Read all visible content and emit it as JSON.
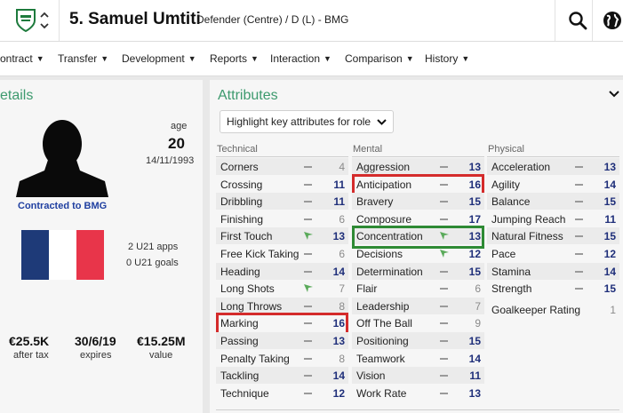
{
  "header": {
    "player_name": "5. Samuel Umtiti",
    "player_role": "Defender (Centre) / D (L) - BMG",
    "icons": [
      "club-crest-icon",
      "up-down-chevron-icon",
      "search-icon",
      "globe-icon"
    ]
  },
  "nav": {
    "items": [
      "ontract",
      "Transfer",
      "Development",
      "Reports",
      "Interaction",
      "Comparison",
      "History"
    ]
  },
  "details": {
    "title": "etails",
    "age_label": "age",
    "age": "20",
    "dob": "14/11/1993",
    "contract_status": "Contracted to BMG",
    "u21_apps": "2 U21 apps",
    "u21_goals": "0 U21 goals",
    "wage_value": "€25.5K",
    "wage_label": "after tax",
    "expires_value": "30/6/19",
    "expires_label": "expires",
    "value_value": "€15.25M",
    "value_label": "value",
    "flag_colors": [
      "#1e3a78",
      "#ffffff",
      "#e8354a"
    ]
  },
  "attributes": {
    "title": "Attributes",
    "highlight_dropdown": "Highlight key attributes for role",
    "colors": {
      "title": "#3d9a6e",
      "highlight_red": "#d42b2b",
      "highlight_green": "#2e8a34",
      "value_navy": "#1f2f7a",
      "value_grey": "#8a8a8a",
      "arrow_green": "#5aaa5a"
    },
    "technical": {
      "label": "Technical",
      "rows": [
        {
          "name": "Corners",
          "value": "4",
          "trend": "dash",
          "tone": "grey"
        },
        {
          "name": "Crossing",
          "value": "11",
          "trend": "dash",
          "tone": "navy"
        },
        {
          "name": "Dribbling",
          "value": "11",
          "trend": "dash",
          "tone": "navy"
        },
        {
          "name": "Finishing",
          "value": "6",
          "trend": "dash",
          "tone": "grey"
        },
        {
          "name": "First Touch",
          "value": "13",
          "trend": "up",
          "tone": "navy"
        },
        {
          "name": "Free Kick Taking",
          "value": "6",
          "trend": "dash",
          "tone": "grey"
        },
        {
          "name": "Heading",
          "value": "14",
          "trend": "dash",
          "tone": "navy"
        },
        {
          "name": "Long Shots",
          "value": "7",
          "trend": "up",
          "tone": "grey"
        },
        {
          "name": "Long Throws",
          "value": "8",
          "trend": "dash",
          "tone": "grey"
        },
        {
          "name": "Marking",
          "value": "16",
          "trend": "dash",
          "tone": "navy"
        },
        {
          "name": "Passing",
          "value": "13",
          "trend": "dash",
          "tone": "navy"
        },
        {
          "name": "Penalty Taking",
          "value": "8",
          "trend": "dash",
          "tone": "grey"
        },
        {
          "name": "Tackling",
          "value": "14",
          "trend": "dash",
          "tone": "navy"
        },
        {
          "name": "Technique",
          "value": "12",
          "trend": "dash",
          "tone": "navy"
        }
      ]
    },
    "mental": {
      "label": "Mental",
      "rows": [
        {
          "name": "Aggression",
          "value": "13",
          "trend": "dash",
          "tone": "navy"
        },
        {
          "name": "Anticipation",
          "value": "16",
          "trend": "dash",
          "tone": "navy"
        },
        {
          "name": "Bravery",
          "value": "15",
          "trend": "dash",
          "tone": "navy"
        },
        {
          "name": "Composure",
          "value": "17",
          "trend": "dash",
          "tone": "navy"
        },
        {
          "name": "Concentration",
          "value": "13",
          "trend": "up",
          "tone": "navy"
        },
        {
          "name": "Decisions",
          "value": "12",
          "trend": "up",
          "tone": "navy"
        },
        {
          "name": "Determination",
          "value": "15",
          "trend": "dash",
          "tone": "navy"
        },
        {
          "name": "Flair",
          "value": "6",
          "trend": "dash",
          "tone": "grey"
        },
        {
          "name": "Leadership",
          "value": "7",
          "trend": "dash",
          "tone": "grey"
        },
        {
          "name": "Off The Ball",
          "value": "9",
          "trend": "dash",
          "tone": "grey"
        },
        {
          "name": "Positioning",
          "value": "15",
          "trend": "dash",
          "tone": "navy"
        },
        {
          "name": "Teamwork",
          "value": "14",
          "trend": "dash",
          "tone": "navy"
        },
        {
          "name": "Vision",
          "value": "11",
          "trend": "dash",
          "tone": "navy"
        },
        {
          "name": "Work Rate",
          "value": "13",
          "trend": "dash",
          "tone": "navy"
        }
      ]
    },
    "physical": {
      "label": "Physical",
      "rows": [
        {
          "name": "Acceleration",
          "value": "13",
          "trend": "dash",
          "tone": "navy"
        },
        {
          "name": "Agility",
          "value": "14",
          "trend": "dash",
          "tone": "navy"
        },
        {
          "name": "Balance",
          "value": "15",
          "trend": "dash",
          "tone": "navy"
        },
        {
          "name": "Jumping Reach",
          "value": "11",
          "trend": "dash",
          "tone": "navy"
        },
        {
          "name": "Natural Fitness",
          "value": "15",
          "trend": "dash",
          "tone": "navy"
        },
        {
          "name": "Pace",
          "value": "12",
          "trend": "dash",
          "tone": "navy"
        },
        {
          "name": "Stamina",
          "value": "14",
          "trend": "dash",
          "tone": "navy"
        },
        {
          "name": "Strength",
          "value": "15",
          "trend": "dash",
          "tone": "navy"
        }
      ],
      "goalkeeper_rating_label": "Goalkeeper Rating",
      "goalkeeper_rating_value": "1"
    },
    "highlighted_red": [
      "Anticipation",
      "Marking"
    ],
    "highlighted_green": [
      "Concentration"
    ]
  }
}
